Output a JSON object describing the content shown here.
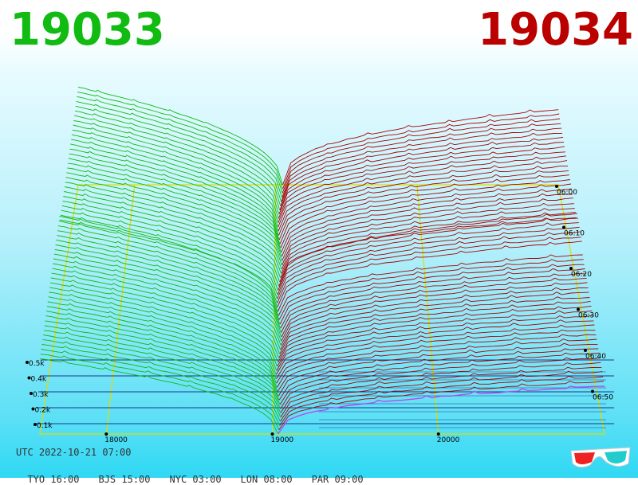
{
  "header": {
    "bid_price": "19033",
    "ask_price": "19034"
  },
  "footer": {
    "utc_label": "UTC 2022-10-21 07:00",
    "zones": [
      "TYO 16:00",
      "BJS 15:00",
      "NYC 03:00",
      "LON 08:00",
      "PAR 09:00"
    ]
  },
  "colors": {
    "bid": "#11bb11",
    "ask": "#aa0000",
    "volume_lines": "#000066",
    "axis": "#dddd00",
    "latest_ask": "#bb44ee"
  },
  "icon": "3d-glasses-icon",
  "chart_data": {
    "type": "3d-orderbook-depth",
    "x_axis": {
      "ticks": [
        18000,
        19000,
        20000
      ]
    },
    "volume_axis": {
      "ticks": [
        "0.1k",
        "0.2k",
        "0.3k",
        "0.4k",
        "0.5k"
      ]
    },
    "time_axis": {
      "ticks": [
        "06:00",
        "06:10",
        "06:20",
        "06:30",
        "06:40",
        "06:50"
      ]
    },
    "snapshots": 60,
    "mid_price": 19033.5,
    "series": [
      {
        "name": "bids",
        "side": "bid",
        "price_range": [
          17600,
          19033
        ],
        "cumulative_volume_range": [
          0,
          0.5
        ]
      },
      {
        "name": "asks",
        "side": "ask",
        "price_range": [
          19034,
          21000
        ],
        "cumulative_volume_range": [
          0,
          0.4
        ]
      }
    ]
  }
}
